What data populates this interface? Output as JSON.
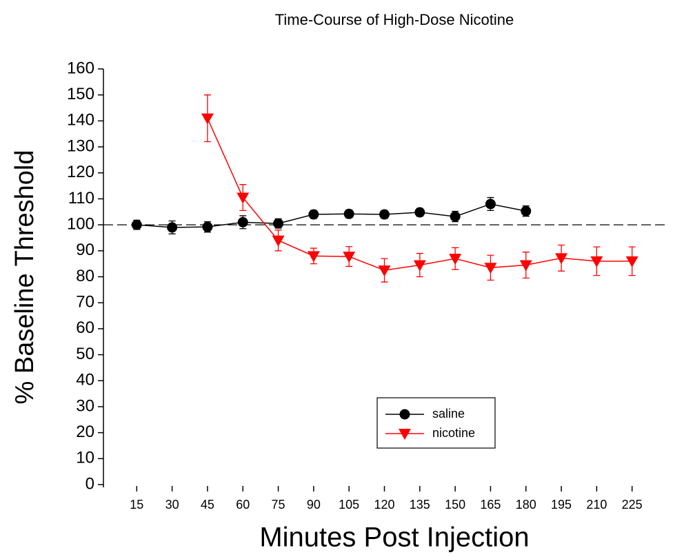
{
  "chart_data": {
    "type": "line",
    "title": "Time-Course of High-Dose Nicotine",
    "xlabel": "Minutes Post Injection",
    "ylabel": "% Baseline Threshold",
    "xlim": [
      0,
      240
    ],
    "xticks": [
      15,
      30,
      45,
      60,
      75,
      90,
      105,
      120,
      135,
      150,
      165,
      180,
      195,
      210,
      225
    ],
    "ylim": [
      0,
      160
    ],
    "yticks": [
      0,
      10,
      20,
      30,
      40,
      50,
      60,
      70,
      80,
      90,
      100,
      110,
      120,
      130,
      140,
      150,
      160
    ],
    "reference_line": 100,
    "series": [
      {
        "name": "saline",
        "color": "#000000",
        "marker": "circle",
        "x": [
          15,
          30,
          45,
          60,
          75,
          90,
          105,
          120,
          135,
          150,
          165,
          180
        ],
        "values": [
          100,
          99,
          99.2,
          101,
          100.5,
          104,
          104.2,
          104,
          104.8,
          103.2,
          108,
          105.3
        ],
        "errors": [
          1.8,
          2.5,
          2,
          2.5,
          1.8,
          1.5,
          1.5,
          1.5,
          1.5,
          2,
          2.5,
          2
        ]
      },
      {
        "name": "nicotine",
        "color": "#ff0000",
        "marker": "triangle-down",
        "x": [
          45,
          60,
          75,
          90,
          105,
          120,
          135,
          150,
          165,
          180,
          195,
          210,
          225
        ],
        "values": [
          141,
          110.5,
          94,
          88,
          87.8,
          82.5,
          84.5,
          87,
          83.5,
          84.5,
          87.2,
          86,
          86
        ],
        "errors": [
          9,
          5,
          4,
          3,
          3.8,
          4.5,
          4.5,
          4.2,
          4.8,
          5,
          5,
          5.5,
          5.5
        ]
      }
    ]
  }
}
